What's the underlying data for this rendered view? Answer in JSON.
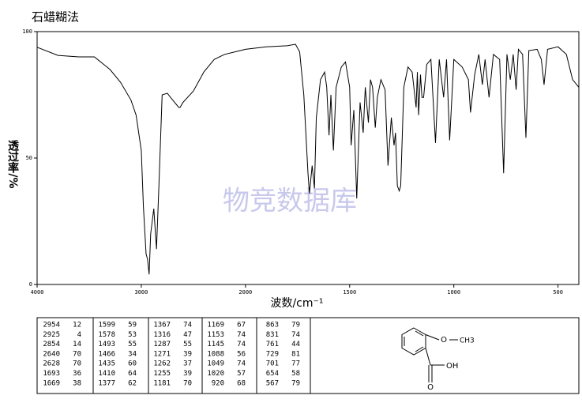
{
  "chart_data": {
    "type": "line",
    "title": "石蜡糊法",
    "xlabel": "波数/cm⁻¹",
    "ylabel": "透过率/%",
    "watermark": "物竞数据库",
    "xlim": [
      4000,
      400
    ],
    "x_scale": {
      "break": 2000,
      "factor": 2
    },
    "xticks": [
      4000,
      3000,
      2000,
      1500,
      1000,
      500
    ],
    "ylim": [
      0,
      100
    ],
    "yticks": [
      0,
      50,
      100
    ],
    "color": "#000000",
    "x": [
      4000,
      3800,
      3600,
      3450,
      3300,
      3200,
      3100,
      3050,
      3000,
      2980,
      2954,
      2940,
      2925,
      2910,
      2880,
      2854,
      2830,
      2800,
      2750,
      2700,
      2640,
      2628,
      2600,
      2500,
      2400,
      2300,
      2200,
      2100,
      2000,
      1900,
      1800,
      1760,
      1740,
      1720,
      1700,
      1693,
      1680,
      1669,
      1660,
      1640,
      1620,
      1610,
      1599,
      1590,
      1578,
      1565,
      1540,
      1520,
      1500,
      1493,
      1480,
      1466,
      1450,
      1435,
      1425,
      1410,
      1400,
      1390,
      1377,
      1367,
      1350,
      1330,
      1316,
      1300,
      1287,
      1280,
      1271,
      1262,
      1255,
      1240,
      1220,
      1200,
      1181,
      1175,
      1169,
      1160,
      1153,
      1145,
      1130,
      1110,
      1088,
      1070,
      1049,
      1035,
      1020,
      1000,
      960,
      930,
      920,
      900,
      880,
      863,
      850,
      831,
      810,
      780,
      761,
      745,
      729,
      715,
      701,
      690,
      670,
      654,
      640,
      600,
      580,
      567,
      550,
      500,
      460,
      430,
      400
    ],
    "values": [
      93.8,
      90.6,
      90,
      90,
      85,
      80,
      73,
      67,
      53,
      31,
      12,
      10,
      4,
      20,
      30,
      14,
      40,
      75,
      75.6,
      73,
      70,
      70,
      72,
      76.5,
      84,
      89,
      91,
      92,
      93,
      94,
      94.4,
      95,
      92,
      75,
      44,
      36,
      47,
      38,
      66,
      81,
      84,
      78,
      59,
      75,
      53,
      78,
      86,
      88,
      78,
      55,
      69,
      34,
      72,
      60,
      78,
      64,
      81,
      78,
      62,
      74,
      81,
      77,
      47,
      66,
      55,
      60,
      39,
      37,
      39,
      78,
      86,
      84,
      70,
      84,
      67,
      83,
      74,
      74,
      87,
      89,
      56,
      89,
      74,
      89,
      57,
      89,
      86,
      81,
      68,
      83,
      91,
      79,
      89,
      74,
      91,
      89,
      44,
      91,
      81,
      91,
      77,
      93,
      91,
      58,
      92.5,
      93,
      89,
      79,
      93,
      94,
      91,
      81,
      78
    ],
    "peak_table": [
      [
        [
          2954,
          12
        ],
        [
          2925,
          4
        ],
        [
          2854,
          14
        ],
        [
          2640,
          70
        ],
        [
          2628,
          70
        ],
        [
          1693,
          36
        ],
        [
          1669,
          38
        ]
      ],
      [
        [
          1599,
          59
        ],
        [
          1578,
          53
        ],
        [
          1493,
          55
        ],
        [
          1466,
          34
        ],
        [
          1435,
          60
        ],
        [
          1410,
          64
        ],
        [
          1377,
          62
        ]
      ],
      [
        [
          1367,
          74
        ],
        [
          1316,
          47
        ],
        [
          1287,
          55
        ],
        [
          1271,
          39
        ],
        [
          1262,
          37
        ],
        [
          1255,
          39
        ],
        [
          1181,
          70
        ]
      ],
      [
        [
          1169,
          67
        ],
        [
          1153,
          74
        ],
        [
          1145,
          74
        ],
        [
          1088,
          56
        ],
        [
          1049,
          74
        ],
        [
          1020,
          57
        ],
        [
          920,
          68
        ]
      ],
      [
        [
          863,
          79
        ],
        [
          831,
          74
        ],
        [
          761,
          44
        ],
        [
          729,
          81
        ],
        [
          701,
          77
        ],
        [
          654,
          58
        ],
        [
          567,
          79
        ]
      ]
    ],
    "structure_labels": [
      "O",
      "CH3",
      "OH",
      "O"
    ]
  }
}
